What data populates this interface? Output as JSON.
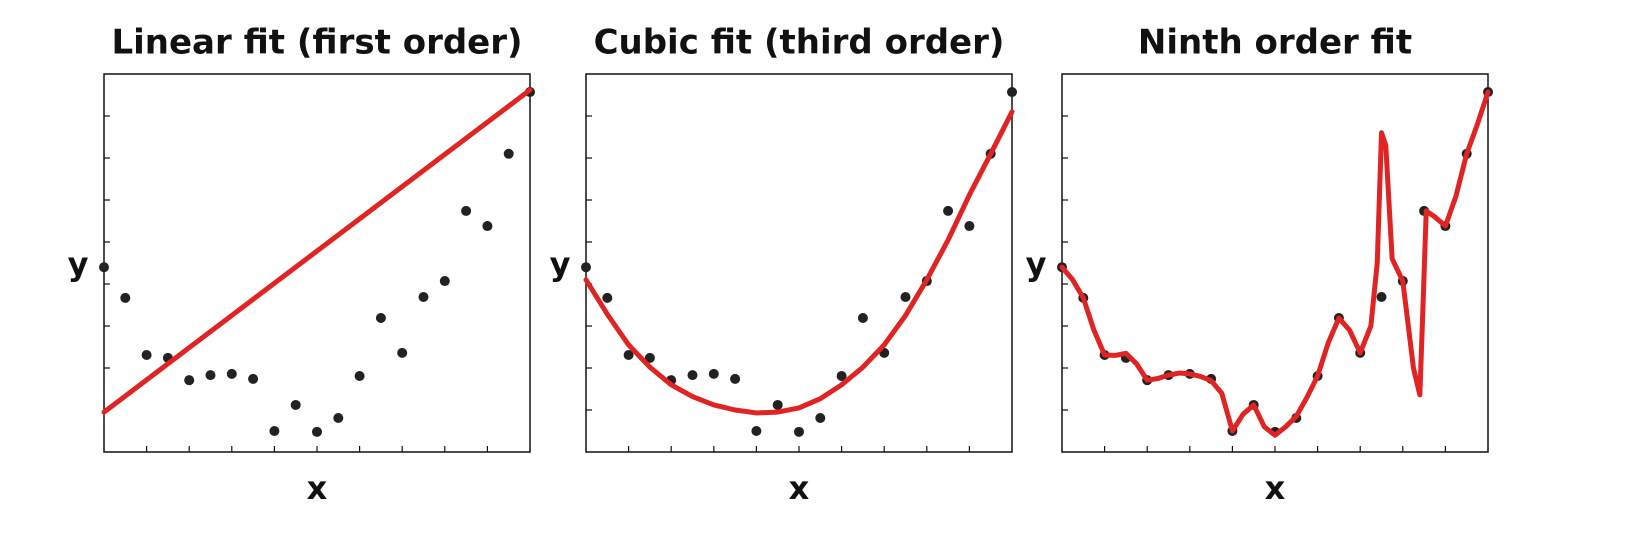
{
  "chart_data": [
    {
      "type": "scatter",
      "title": "Linear fit (first order)",
      "xlabel": "x",
      "ylabel": "y",
      "x": [
        0,
        1,
        2,
        3,
        4,
        5,
        6,
        7,
        8,
        9,
        10,
        11,
        12,
        13,
        14,
        15,
        16,
        17,
        18,
        19,
        20
      ],
      "values": [
        4.4,
        3.67,
        2.31,
        2.24,
        1.71,
        1.83,
        1.86,
        1.74,
        0.5,
        1.12,
        0.48,
        0.81,
        1.81,
        3.19,
        2.36,
        3.69,
        4.07,
        5.74,
        5.38,
        7.1,
        8.57
      ],
      "color": "#222222",
      "fit_x": [
        0,
        20
      ],
      "fit_values": [
        0.95,
        8.62
      ],
      "fit_color": "#e02424",
      "xlim": [
        0,
        20
      ],
      "ylim": [
        0,
        9
      ],
      "xticks": [
        2,
        4,
        6,
        8,
        10,
        12,
        14,
        16,
        18
      ],
      "yticks": [
        1,
        2,
        3,
        4,
        5,
        6,
        7,
        8
      ]
    },
    {
      "type": "scatter",
      "title": "Cubic fit (third order)",
      "xlabel": "x",
      "ylabel": "y",
      "x": [
        0,
        1,
        2,
        3,
        4,
        5,
        6,
        7,
        8,
        9,
        10,
        11,
        12,
        13,
        14,
        15,
        16,
        17,
        18,
        19,
        20
      ],
      "values": [
        4.4,
        3.67,
        2.31,
        2.24,
        1.71,
        1.83,
        1.86,
        1.74,
        0.5,
        1.12,
        0.48,
        0.81,
        1.81,
        3.19,
        2.36,
        3.69,
        4.07,
        5.74,
        5.38,
        7.1,
        8.57
      ],
      "color": "#222222",
      "fit_x": [
        0,
        1,
        2,
        3,
        4,
        5,
        6,
        7,
        8,
        9,
        10,
        11,
        12,
        13,
        14,
        15,
        16,
        17,
        18,
        19,
        20
      ],
      "fit_values": [
        4.1,
        3.28,
        2.55,
        2.02,
        1.6,
        1.32,
        1.12,
        1.0,
        0.93,
        0.95,
        1.05,
        1.27,
        1.6,
        2.02,
        2.55,
        3.25,
        4.1,
        5.05,
        6.12,
        7.1,
        8.1
      ],
      "fit_color": "#e02424",
      "xlim": [
        0,
        20
      ],
      "ylim": [
        0,
        9
      ],
      "xticks": [
        2,
        4,
        6,
        8,
        10,
        12,
        14,
        16,
        18
      ],
      "yticks": [
        1,
        2,
        3,
        4,
        5,
        6,
        7,
        8
      ]
    },
    {
      "type": "scatter",
      "title": "Ninth order fit",
      "xlabel": "x",
      "ylabel": "y",
      "x": [
        0,
        1,
        2,
        3,
        4,
        5,
        6,
        7,
        8,
        9,
        10,
        11,
        12,
        13,
        14,
        15,
        16,
        17,
        18,
        19,
        20
      ],
      "values": [
        4.4,
        3.67,
        2.31,
        2.24,
        1.71,
        1.83,
        1.86,
        1.74,
        0.5,
        1.12,
        0.48,
        0.81,
        1.81,
        3.19,
        2.36,
        3.69,
        4.07,
        5.74,
        5.38,
        7.1,
        8.57
      ],
      "color": "#222222",
      "fit_x": [
        0,
        0.5,
        1,
        1.5,
        2,
        2.5,
        3,
        3.5,
        4,
        4.5,
        5,
        5.5,
        6,
        6.5,
        7,
        7.5,
        8,
        8.5,
        9,
        9.5,
        10,
        10.5,
        11,
        11.5,
        12,
        12.5,
        13,
        13.5,
        14,
        14.5,
        14.8,
        15,
        15.2,
        15.5,
        16,
        16.5,
        16.8,
        16.95,
        17.1,
        17.5,
        18,
        18.5,
        19,
        19.5,
        20
      ],
      "fit_values": [
        4.4,
        4.1,
        3.67,
        2.9,
        2.31,
        2.3,
        2.35,
        2.1,
        1.71,
        1.75,
        1.83,
        1.88,
        1.86,
        1.8,
        1.7,
        1.4,
        0.5,
        0.9,
        1.12,
        0.6,
        0.4,
        0.6,
        0.85,
        1.3,
        1.81,
        2.6,
        3.19,
        2.9,
        2.36,
        3.0,
        4.5,
        7.6,
        7.3,
        4.6,
        4.07,
        2.0,
        1.36,
        3.5,
        5.74,
        5.6,
        5.38,
        6.1,
        7.1,
        7.8,
        8.57
      ],
      "fit_color": "#e02424",
      "xlim": [
        0,
        20
      ],
      "ylim": [
        0,
        9
      ],
      "xticks": [
        2,
        4,
        6,
        8,
        10,
        12,
        14,
        16,
        18
      ],
      "yticks": [
        1,
        2,
        3,
        4,
        5,
        6,
        7,
        8
      ]
    }
  ]
}
